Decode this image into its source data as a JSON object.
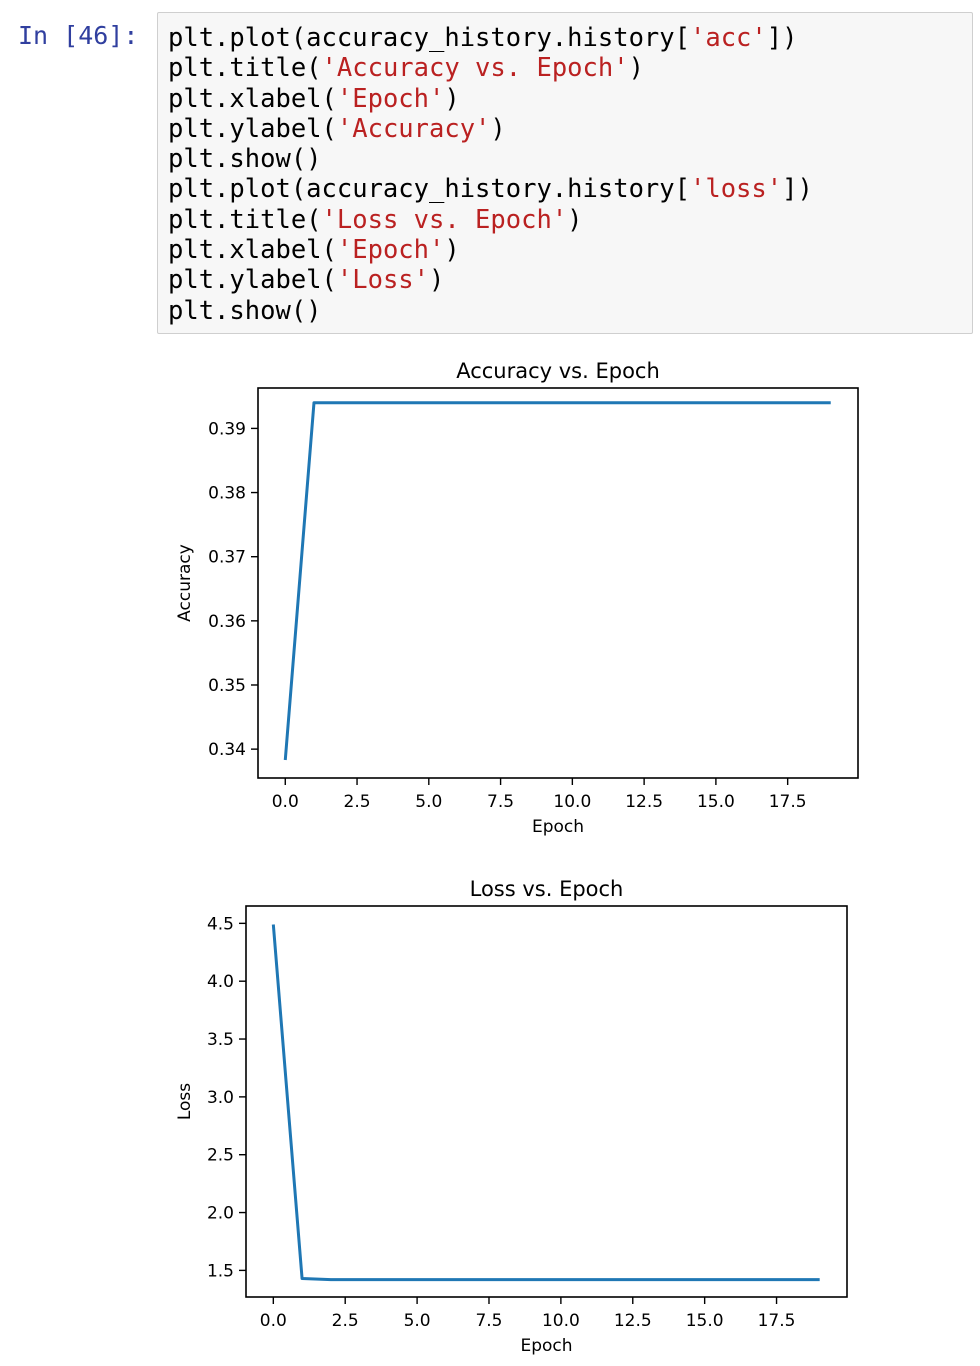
{
  "cell": {
    "prompt": "In [46]:",
    "code_lines": [
      {
        "pre": "plt.plot(accuracy_history.history[",
        "str": "'acc'",
        "post": "])"
      },
      {
        "pre": "plt.title(",
        "str": "'Accuracy vs. Epoch'",
        "post": ")"
      },
      {
        "pre": "plt.xlabel(",
        "str": "'Epoch'",
        "post": ")"
      },
      {
        "pre": "plt.ylabel(",
        "str": "'Accuracy'",
        "post": ")"
      },
      {
        "pre": "plt.show()",
        "str": "",
        "post": ""
      },
      {
        "pre": "plt.plot(accuracy_history.history[",
        "str": "'loss'",
        "post": "])"
      },
      {
        "pre": "plt.title(",
        "str": "'Loss vs. Epoch'",
        "post": ")"
      },
      {
        "pre": "plt.xlabel(",
        "str": "'Epoch'",
        "post": ")"
      },
      {
        "pre": "plt.ylabel(",
        "str": "'Loss'",
        "post": ")"
      },
      {
        "pre": "plt.show()",
        "str": "",
        "post": ""
      }
    ]
  },
  "colors": {
    "prompt": "#303f9f",
    "code_string": "#ba2121",
    "line": "#1f77b4"
  },
  "chart_data": [
    {
      "type": "line",
      "title": "Accuracy vs. Epoch",
      "xlabel": "Epoch",
      "ylabel": "Accuracy",
      "xlim": [
        -0.95,
        19.95
      ],
      "ylim": [
        0.3355,
        0.3963
      ],
      "xticks": [
        0.0,
        2.5,
        5.0,
        7.5,
        10.0,
        12.5,
        15.0,
        17.5
      ],
      "xtick_labels": [
        "0.0",
        "2.5",
        "5.0",
        "7.5",
        "10.0",
        "12.5",
        "15.0",
        "17.5"
      ],
      "yticks": [
        0.34,
        0.35,
        0.36,
        0.37,
        0.38,
        0.39
      ],
      "ytick_labels": [
        "0.34",
        "0.35",
        "0.36",
        "0.37",
        "0.38",
        "0.39"
      ],
      "grid": false,
      "series": [
        {
          "x": [
            0,
            1,
            2,
            3,
            4,
            5,
            6,
            7,
            8,
            9,
            10,
            11,
            12,
            13,
            14,
            15,
            16,
            17,
            18,
            19
          ],
          "values": [
            0.3383,
            0.394,
            0.394,
            0.394,
            0.394,
            0.394,
            0.394,
            0.394,
            0.394,
            0.394,
            0.394,
            0.394,
            0.394,
            0.394,
            0.394,
            0.394,
            0.394,
            0.394,
            0.394,
            0.394
          ]
        }
      ]
    },
    {
      "type": "line",
      "title": "Loss vs. Epoch",
      "xlabel": "Epoch",
      "ylabel": "Loss",
      "xlim": [
        -0.95,
        19.95
      ],
      "ylim": [
        1.27,
        4.65
      ],
      "xticks": [
        0.0,
        2.5,
        5.0,
        7.5,
        10.0,
        12.5,
        15.0,
        17.5
      ],
      "xtick_labels": [
        "0.0",
        "2.5",
        "5.0",
        "7.5",
        "10.0",
        "12.5",
        "15.0",
        "17.5"
      ],
      "yticks": [
        1.5,
        2.0,
        2.5,
        3.0,
        3.5,
        4.0,
        4.5
      ],
      "ytick_labels": [
        "1.5",
        "2.0",
        "2.5",
        "3.0",
        "3.5",
        "4.0",
        "4.5"
      ],
      "grid": false,
      "series": [
        {
          "x": [
            0,
            1,
            2,
            3,
            4,
            5,
            6,
            7,
            8,
            9,
            10,
            11,
            12,
            13,
            14,
            15,
            16,
            17,
            18,
            19
          ],
          "values": [
            4.49,
            1.43,
            1.42,
            1.42,
            1.42,
            1.42,
            1.42,
            1.42,
            1.42,
            1.42,
            1.42,
            1.42,
            1.42,
            1.42,
            1.42,
            1.42,
            1.42,
            1.42,
            1.42,
            1.42
          ]
        }
      ]
    }
  ]
}
